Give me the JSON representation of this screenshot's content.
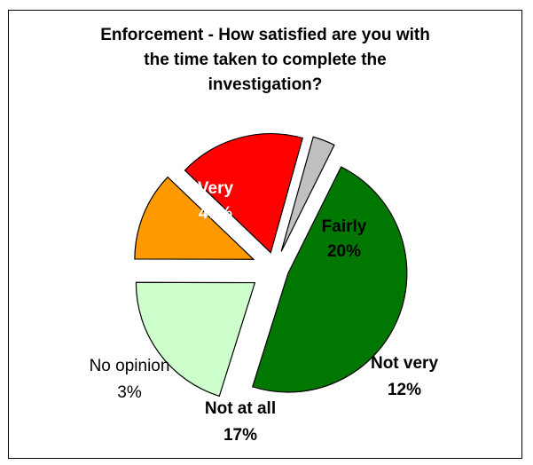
{
  "chart_data": {
    "type": "pie",
    "title_lines": [
      "Enforcement - How satisfied are you with",
      "the time taken to complete the",
      "investigation?"
    ],
    "slices": [
      {
        "label": "Very",
        "value": 47,
        "value_text": "47%",
        "color": "#007700",
        "label_color": "#ffffff"
      },
      {
        "label": "Fairly",
        "value": 20,
        "value_text": "20%",
        "color": "#ccffcc",
        "label_color": "#000000"
      },
      {
        "label": "Not very",
        "value": 12,
        "value_text": "12%",
        "color": "#ff9900",
        "label_color": "#000000"
      },
      {
        "label": "Not at all",
        "value": 17,
        "value_text": "17%",
        "color": "#ff0000",
        "label_color": "#000000"
      },
      {
        "label": "No opinion",
        "value": 3,
        "value_text": "3%",
        "color": "#c0c0c0",
        "label_color": "#000000"
      }
    ]
  }
}
